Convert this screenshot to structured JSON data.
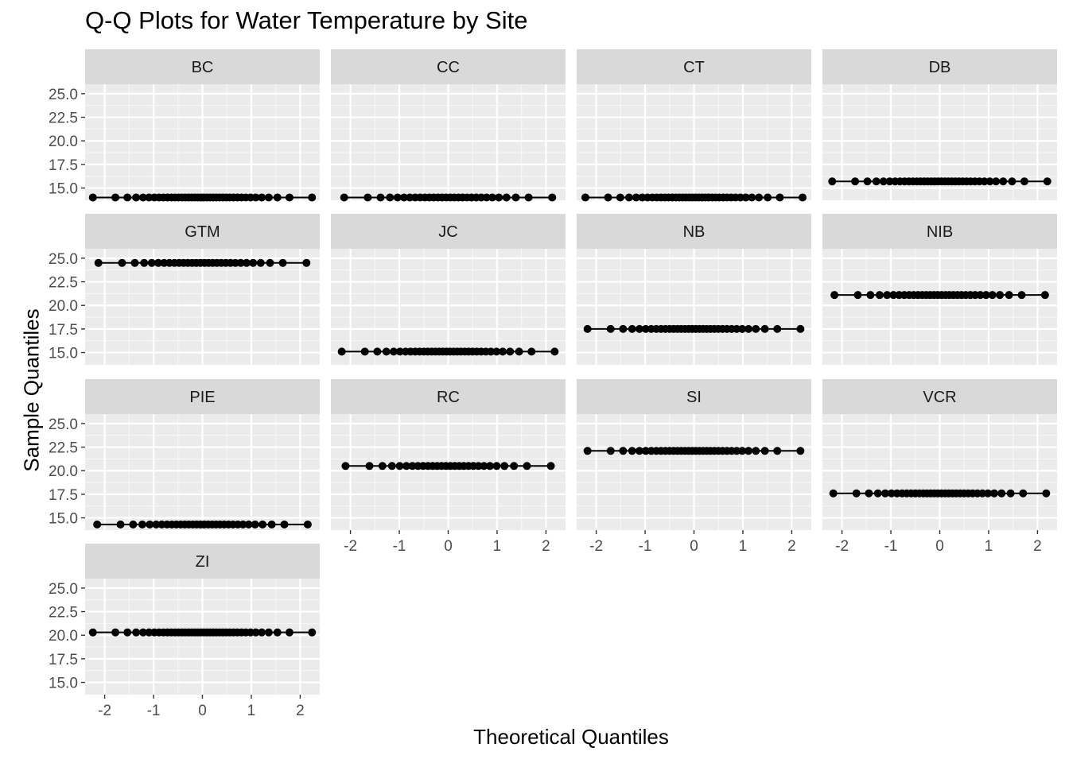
{
  "chart_data": {
    "type": "scatter",
    "title": "Q-Q Plots for Water Temperature by Site",
    "xlabel": "Theoretical Quantiles",
    "ylabel": "Sample Quantiles",
    "xlim": [
      -2.4,
      2.4
    ],
    "ylim": [
      13.7,
      26.0
    ],
    "x_ticks": [
      -2,
      -1,
      0,
      1,
      2
    ],
    "x_tick_labels": [
      "-2",
      "-1",
      "0",
      "1",
      "2"
    ],
    "y_ticks": [
      15.0,
      17.5,
      20.0,
      22.5,
      25.0
    ],
    "y_tick_labels": [
      "15.0",
      "17.5",
      "20.0",
      "22.5",
      "25.0"
    ],
    "grid": true,
    "facet_layout": {
      "ncol": 4,
      "nrow": 4
    },
    "panels": [
      {
        "site": "BC",
        "n": 40,
        "value": 14.0
      },
      {
        "site": "CC",
        "n": 30,
        "value": 14.0
      },
      {
        "site": "CT",
        "n": 38,
        "value": 14.0
      },
      {
        "site": "DB",
        "n": 36,
        "value": 15.7
      },
      {
        "site": "GTM",
        "n": 30,
        "value": 24.5
      },
      {
        "site": "JC",
        "n": 34,
        "value": 15.1
      },
      {
        "site": "NB",
        "n": 34,
        "value": 17.5
      },
      {
        "site": "NIB",
        "n": 32,
        "value": 21.1
      },
      {
        "site": "PIE",
        "n": 32,
        "value": 14.3
      },
      {
        "site": "RC",
        "n": 28,
        "value": 20.5
      },
      {
        "site": "SI",
        "n": 34,
        "value": 22.1
      },
      {
        "site": "VCR",
        "n": 34,
        "value": 17.6
      },
      {
        "site": "ZI",
        "n": 40,
        "value": 20.3
      }
    ]
  },
  "colors": {
    "panel_background": "#ebebeb",
    "grid_major": "#ffffff",
    "strip_background": "#d9d9d9",
    "point": "#000000",
    "tick_text": "#4d4d4d"
  }
}
